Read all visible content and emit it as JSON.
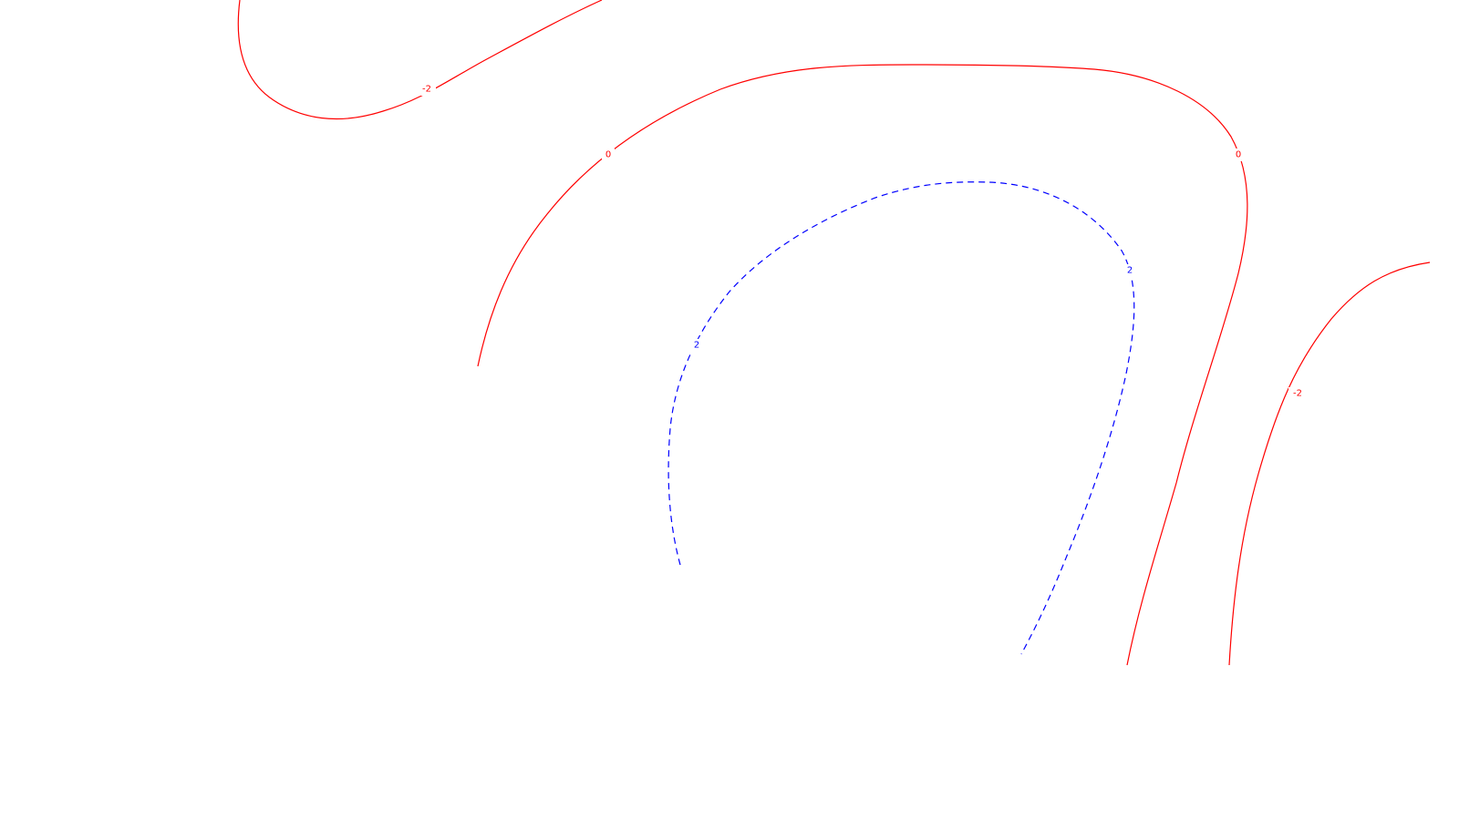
{
  "map": {
    "background": "#ffffff",
    "contours": [
      {
        "id": "c1",
        "level": "-2",
        "color": "#ff0000",
        "style": "solid"
      },
      {
        "id": "c2",
        "level": "0",
        "color": "#ff0000",
        "style": "solid"
      },
      {
        "id": "c3",
        "level": "2",
        "color": "#0000ff",
        "style": "dashed"
      },
      {
        "id": "c4",
        "level": "-2",
        "color": "#ff0000",
        "style": "solid"
      }
    ],
    "labels": [
      {
        "text": "-2",
        "contour": "c1"
      },
      {
        "text": "0",
        "contour": "c2"
      },
      {
        "text": "0",
        "contour": "c2"
      },
      {
        "text": "2",
        "contour": "c3"
      },
      {
        "text": "2",
        "contour": "c3"
      },
      {
        "text": "-2",
        "contour": "c4"
      }
    ]
  }
}
